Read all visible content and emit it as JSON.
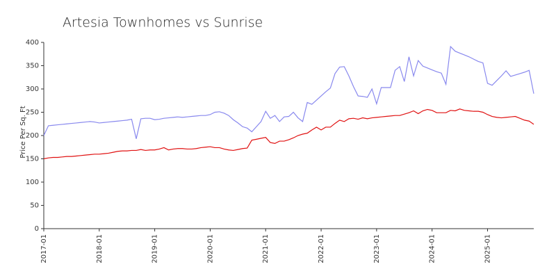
{
  "chart_data": {
    "type": "line",
    "title": "Artesia Townhomes vs Sunrise",
    "y_label": "Price Per Sq. Ft",
    "x": [
      "2017-01",
      "2017-02",
      "2017-03",
      "2017-04",
      "2017-05",
      "2017-06",
      "2017-07",
      "2017-08",
      "2017-09",
      "2017-10",
      "2017-11",
      "2017-12",
      "2018-01",
      "2018-02",
      "2018-03",
      "2018-04",
      "2018-05",
      "2018-06",
      "2018-07",
      "2018-08",
      "2018-09",
      "2018-10",
      "2018-11",
      "2018-12",
      "2019-01",
      "2019-02",
      "2019-03",
      "2019-04",
      "2019-05",
      "2019-06",
      "2019-07",
      "2019-08",
      "2019-09",
      "2019-10",
      "2019-11",
      "2019-12",
      "2020-01",
      "2020-02",
      "2020-03",
      "2020-04",
      "2020-05",
      "2020-06",
      "2020-07",
      "2020-08",
      "2020-09",
      "2020-10",
      "2020-11",
      "2020-12",
      "2021-01",
      "2021-02",
      "2021-03",
      "2021-04",
      "2021-05",
      "2021-06",
      "2021-07",
      "2021-08",
      "2021-09",
      "2021-10",
      "2021-11",
      "2021-12",
      "2022-01",
      "2022-02",
      "2022-03",
      "2022-04",
      "2022-05",
      "2022-06",
      "2022-07",
      "2022-08",
      "2022-09",
      "2022-10",
      "2022-11",
      "2022-12",
      "2023-01",
      "2023-02",
      "2023-03",
      "2023-04",
      "2023-05",
      "2023-06",
      "2023-07",
      "2023-08",
      "2023-09",
      "2023-10",
      "2023-11",
      "2023-12",
      "2024-01",
      "2024-02",
      "2024-03",
      "2024-04",
      "2024-05",
      "2024-06",
      "2024-07",
      "2024-08",
      "2024-09",
      "2024-10",
      "2024-11",
      "2024-12",
      "2025-01",
      "2025-02",
      "2025-03",
      "2025-04",
      "2025-05",
      "2025-06",
      "2025-07",
      "2025-08",
      "2025-09",
      "2025-10",
      "2025-11"
    ],
    "series": [
      {
        "color": "#8888ee",
        "values": [
          200,
          221,
          222,
          223,
          224,
          225,
          226,
          227,
          228,
          229,
          230,
          229,
          227,
          228,
          229,
          230,
          231,
          232,
          233,
          235,
          193,
          236,
          237,
          237,
          234,
          235,
          237,
          238,
          239,
          240,
          239,
          240,
          241,
          242,
          243,
          243,
          245,
          250,
          251,
          248,
          243,
          234,
          227,
          219,
          216,
          208,
          219,
          230,
          252,
          237,
          243,
          230,
          240,
          241,
          250,
          238,
          230,
          271,
          267,
          276,
          285,
          294,
          302,
          333,
          347,
          348,
          328,
          305,
          285,
          284,
          282,
          300,
          268,
          303,
          303,
          303,
          340,
          348,
          316,
          369,
          328,
          361,
          349,
          345,
          341,
          337,
          334,
          310,
          391,
          381,
          377,
          373,
          369,
          364,
          359,
          356,
          312,
          308,
          318,
          328,
          339,
          327,
          330,
          333,
          336,
          340,
          290
        ]
      },
      {
        "color": "#e01010",
        "values": [
          150,
          152,
          153,
          153,
          154,
          155,
          155,
          156,
          157,
          158,
          159,
          160,
          160,
          161,
          162,
          164,
          166,
          167,
          167,
          168,
          168,
          170,
          168,
          169,
          169,
          171,
          174,
          169,
          171,
          172,
          172,
          171,
          171,
          172,
          174,
          175,
          176,
          174,
          174,
          171,
          169,
          168,
          170,
          172,
          173,
          190,
          192,
          194,
          196,
          185,
          183,
          188,
          188,
          191,
          195,
          200,
          203,
          205,
          212,
          218,
          212,
          218,
          218,
          226,
          233,
          230,
          236,
          237,
          235,
          238,
          236,
          238,
          239,
          240,
          241,
          242,
          243,
          243,
          246,
          249,
          253,
          247,
          253,
          256,
          254,
          249,
          249,
          249,
          254,
          253,
          257,
          254,
          253,
          252,
          252,
          250,
          245,
          241,
          239,
          238,
          239,
          240,
          241,
          237,
          233,
          231,
          224
        ]
      }
    ],
    "xlim": [
      "2017-01",
      "2025-11"
    ],
    "xticks": [
      "2017-01",
      "2018-01",
      "2019-01",
      "2020-01",
      "2021-01",
      "2022-01",
      "2023-01",
      "2024-01",
      "2025-01"
    ],
    "ylim": [
      0,
      400
    ],
    "yticks": [
      0,
      50,
      100,
      150,
      200,
      250,
      300,
      350,
      400
    ],
    "grid": false
  }
}
